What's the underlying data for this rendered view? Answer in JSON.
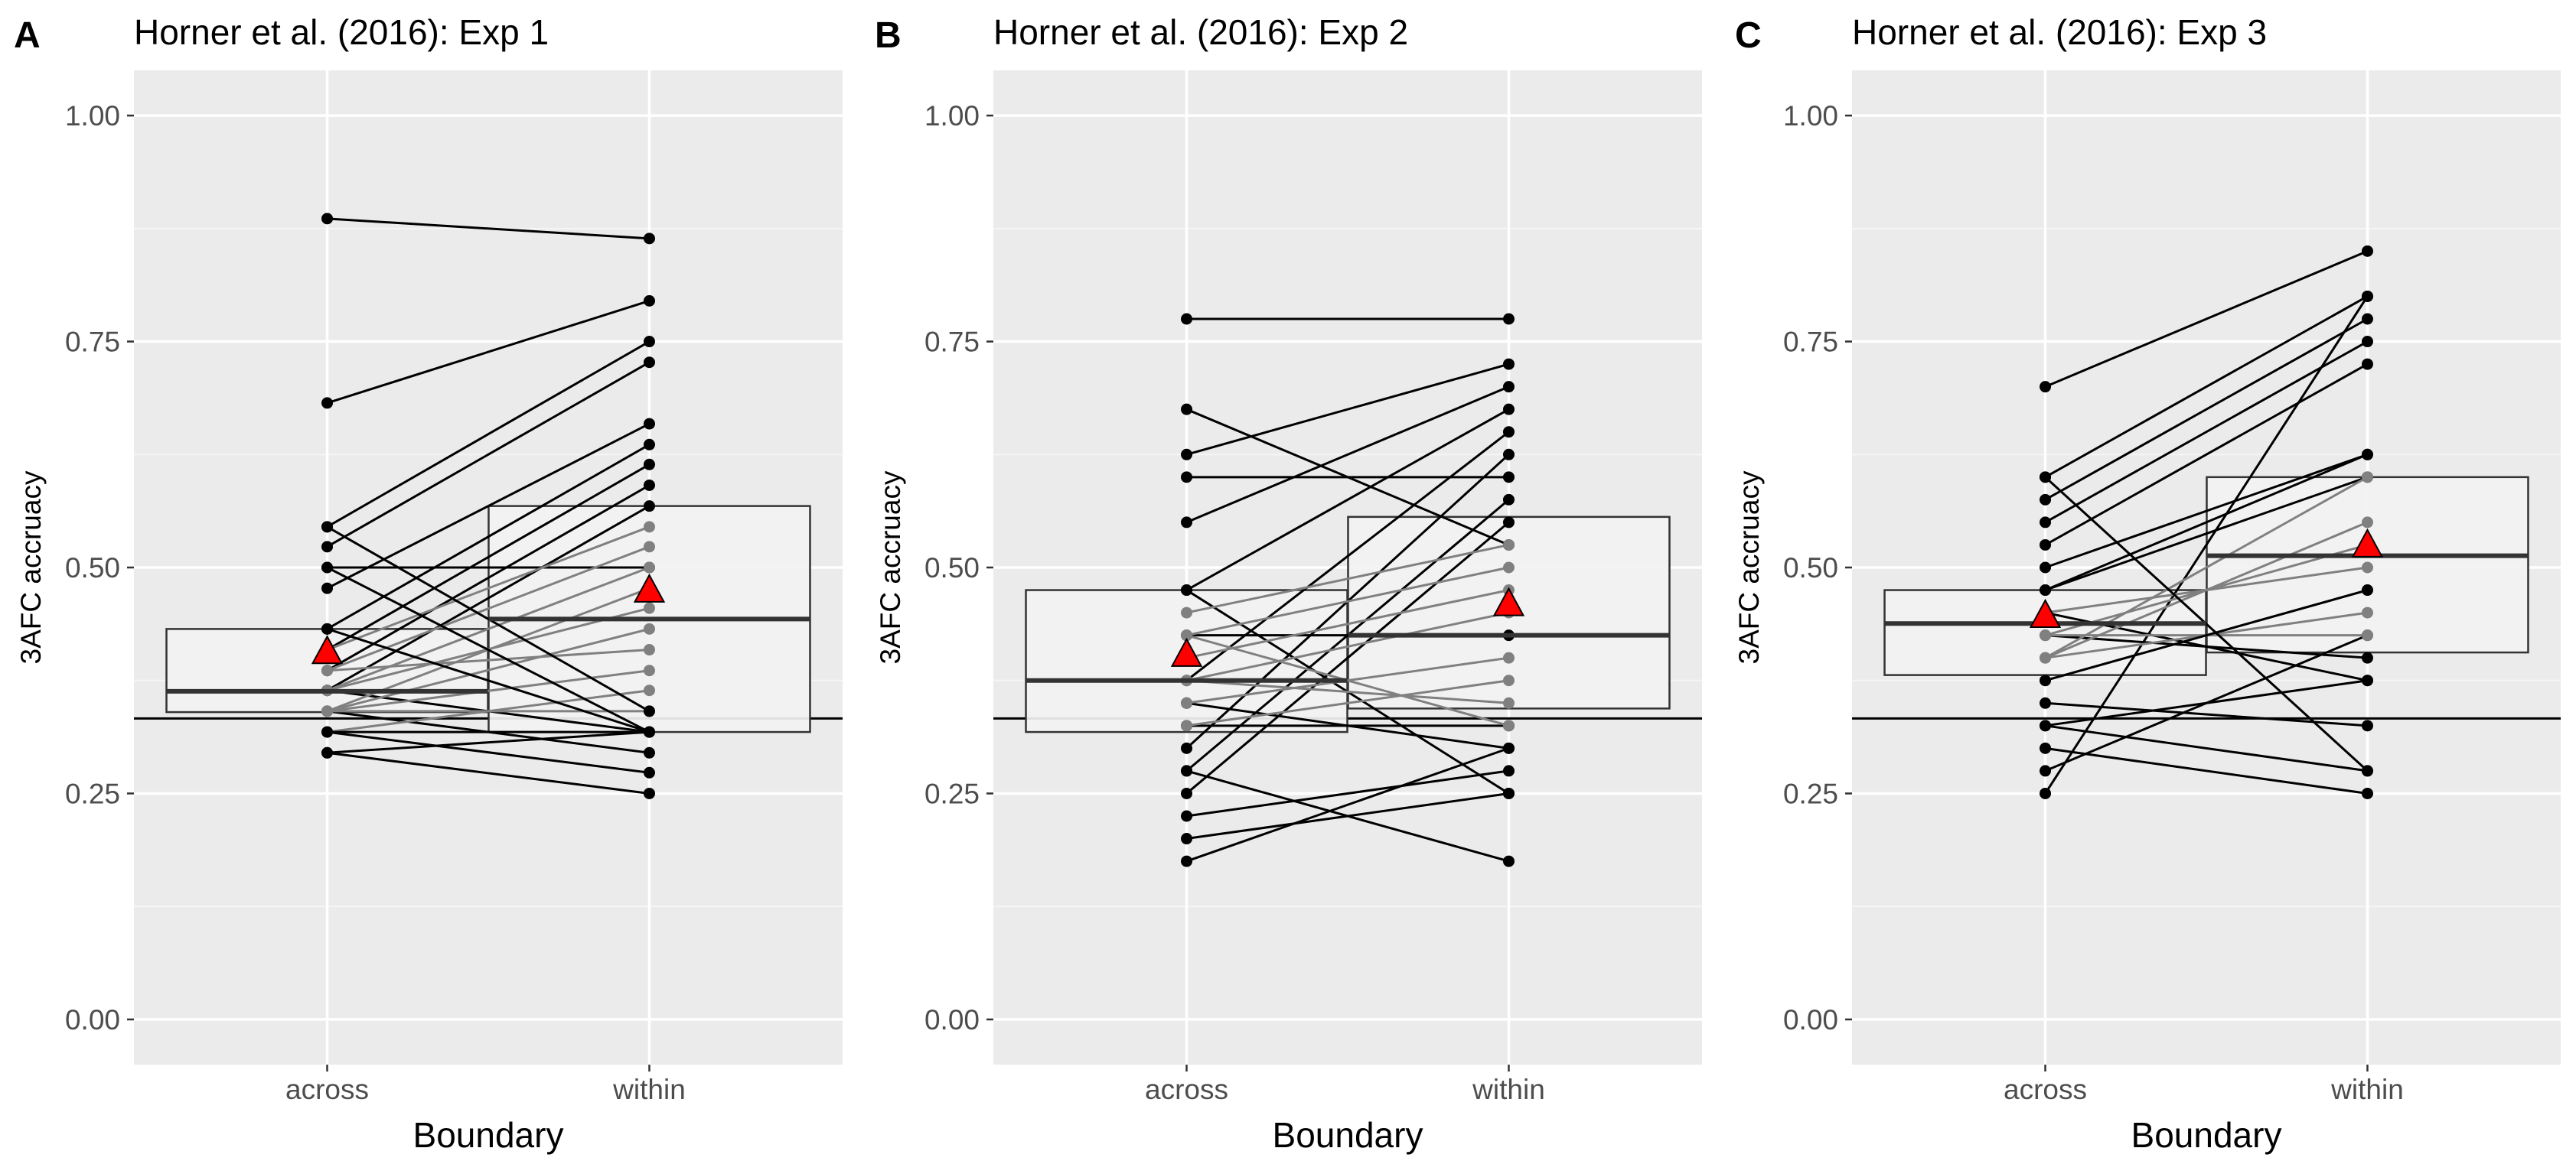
{
  "chart_data": [
    {
      "panel": "A",
      "title": "Horner et al. (2016): Exp 1",
      "type": "box + paired points",
      "xlabel": "Boundary",
      "ylabel": "3AFC accruacy",
      "categories": [
        "across",
        "within"
      ],
      "ylim": [
        -0.05,
        1.05
      ],
      "yticks": [
        "0.00",
        "0.25",
        "0.50",
        "0.75",
        "1.00"
      ],
      "hline": 0.333,
      "means": [
        0.405,
        0.473
      ],
      "boxes": [
        {
          "q1": 0.34,
          "median": 0.363,
          "q3": 0.432
        },
        {
          "q1": 0.318,
          "median": 0.443,
          "q3": 0.568
        }
      ],
      "pairs": [
        [
          0.886,
          0.864,
          "black"
        ],
        [
          0.682,
          0.795,
          "black"
        ],
        [
          0.545,
          0.75,
          "black"
        ],
        [
          0.523,
          0.727,
          "black"
        ],
        [
          0.5,
          0.5,
          "black"
        ],
        [
          0.477,
          0.659,
          "black"
        ],
        [
          0.432,
          0.636,
          "black"
        ],
        [
          0.409,
          0.614,
          "black"
        ],
        [
          0.386,
          0.591,
          "black"
        ],
        [
          0.364,
          0.568,
          "black"
        ],
        [
          0.341,
          0.295,
          "black"
        ],
        [
          0.318,
          0.273,
          "black"
        ],
        [
          0.295,
          0.25,
          "black"
        ],
        [
          0.364,
          0.318,
          "black"
        ],
        [
          0.409,
          0.545,
          "grey"
        ],
        [
          0.386,
          0.523,
          "grey"
        ],
        [
          0.364,
          0.5,
          "grey"
        ],
        [
          0.341,
          0.477,
          "grey"
        ],
        [
          0.364,
          0.455,
          "grey"
        ],
        [
          0.341,
          0.432,
          "grey"
        ],
        [
          0.386,
          0.409,
          "grey"
        ],
        [
          0.341,
          0.386,
          "grey"
        ],
        [
          0.318,
          0.364,
          "grey"
        ],
        [
          0.341,
          0.341,
          "grey"
        ],
        [
          0.432,
          0.318,
          "black"
        ],
        [
          0.545,
          0.341,
          "black"
        ],
        [
          0.318,
          0.318,
          "black"
        ],
        [
          0.5,
          0.318,
          "black"
        ],
        [
          0.295,
          0.318,
          "black"
        ]
      ]
    },
    {
      "panel": "B",
      "title": "Horner et al. (2016): Exp 2",
      "type": "box + paired points",
      "xlabel": "Boundary",
      "ylabel": "3AFC accruacy",
      "categories": [
        "across",
        "within"
      ],
      "ylim": [
        -0.05,
        1.05
      ],
      "yticks": [
        "0.00",
        "0.25",
        "0.50",
        "0.75",
        "1.00"
      ],
      "hline": 0.333,
      "means": [
        0.402,
        0.458
      ],
      "boxes": [
        {
          "q1": 0.318,
          "median": 0.375,
          "q3": 0.475
        },
        {
          "q1": 0.344,
          "median": 0.425,
          "q3": 0.556
        }
      ],
      "pairs": [
        [
          0.775,
          0.775,
          "black"
        ],
        [
          0.675,
          0.525,
          "black"
        ],
        [
          0.625,
          0.725,
          "black"
        ],
        [
          0.6,
          0.6,
          "black"
        ],
        [
          0.55,
          0.7,
          "black"
        ],
        [
          0.475,
          0.675,
          "black"
        ],
        [
          0.425,
          0.425,
          "black"
        ],
        [
          0.375,
          0.65,
          "black"
        ],
        [
          0.35,
          0.3,
          "black"
        ],
        [
          0.3,
          0.625,
          "black"
        ],
        [
          0.275,
          0.575,
          "black"
        ],
        [
          0.25,
          0.55,
          "black"
        ],
        [
          0.225,
          0.275,
          "black"
        ],
        [
          0.2,
          0.25,
          "black"
        ],
        [
          0.175,
          0.3,
          "black"
        ],
        [
          0.275,
          0.175,
          "black"
        ],
        [
          0.325,
          0.325,
          "black"
        ],
        [
          0.475,
          0.25,
          "black"
        ],
        [
          0.45,
          0.525,
          "grey"
        ],
        [
          0.425,
          0.5,
          "grey"
        ],
        [
          0.4,
          0.475,
          "grey"
        ],
        [
          0.375,
          0.45,
          "grey"
        ],
        [
          0.35,
          0.4,
          "grey"
        ],
        [
          0.325,
          0.375,
          "grey"
        ],
        [
          0.375,
          0.35,
          "grey"
        ],
        [
          0.425,
          0.325,
          "grey"
        ]
      ]
    },
    {
      "panel": "C",
      "title": "Horner et al. (2016): Exp 3",
      "type": "box + paired points",
      "xlabel": "Boundary",
      "ylabel": "3AFC accruacy",
      "categories": [
        "across",
        "within"
      ],
      "ylim": [
        -0.05,
        1.05
      ],
      "yticks": [
        "0.00",
        "0.25",
        "0.50",
        "0.75",
        "1.00"
      ],
      "hline": 0.333,
      "means": [
        0.445,
        0.523
      ],
      "boxes": [
        {
          "q1": 0.381,
          "median": 0.438,
          "q3": 0.475
        },
        {
          "q1": 0.406,
          "median": 0.513,
          "q3": 0.6
        }
      ],
      "pairs": [
        [
          0.7,
          0.85,
          "black"
        ],
        [
          0.6,
          0.8,
          "black"
        ],
        [
          0.575,
          0.775,
          "black"
        ],
        [
          0.55,
          0.75,
          "black"
        ],
        [
          0.525,
          0.725,
          "black"
        ],
        [
          0.5,
          0.625,
          "black"
        ],
        [
          0.475,
          0.6,
          "black"
        ],
        [
          0.45,
          0.375,
          "black"
        ],
        [
          0.425,
          0.4,
          "black"
        ],
        [
          0.35,
          0.325,
          "black"
        ],
        [
          0.325,
          0.275,
          "black"
        ],
        [
          0.3,
          0.25,
          "black"
        ],
        [
          0.275,
          0.425,
          "black"
        ],
        [
          0.25,
          0.8,
          "black"
        ],
        [
          0.4,
          0.55,
          "grey"
        ],
        [
          0.425,
          0.525,
          "grey"
        ],
        [
          0.45,
          0.5,
          "grey"
        ],
        [
          0.375,
          0.475,
          "grey"
        ],
        [
          0.4,
          0.45,
          "grey"
        ],
        [
          0.425,
          0.425,
          "grey"
        ],
        [
          0.4,
          0.6,
          "grey"
        ],
        [
          0.475,
          0.625,
          "black"
        ],
        [
          0.6,
          0.275,
          "black"
        ],
        [
          0.375,
          0.475,
          "black"
        ],
        [
          0.325,
          0.375,
          "black"
        ]
      ]
    }
  ]
}
